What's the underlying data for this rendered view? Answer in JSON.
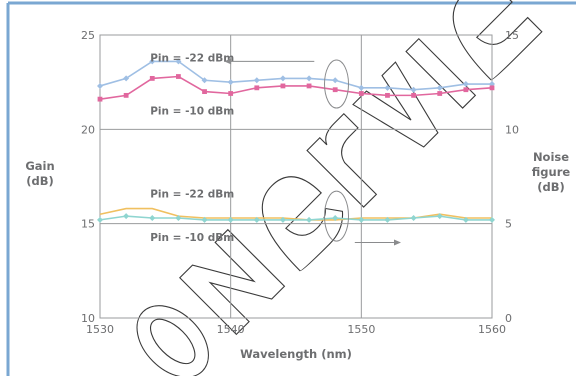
{
  "chart_data": {
    "type": "line",
    "xlabel": "Wavelength (nm)",
    "ylabel_left_lines": [
      "Gain",
      "(dB)"
    ],
    "ylabel_right_lines": [
      "Noise",
      "figure",
      "(dB)"
    ],
    "xlim": [
      1530,
      1560
    ],
    "ylim_left": [
      10,
      25
    ],
    "ylim_right": [
      0,
      15
    ],
    "x_ticks": [
      "1530",
      "1540",
      "1550",
      "1560"
    ],
    "y_ticks_left": [
      "10",
      "15",
      "20",
      "25"
    ],
    "y_ticks_right": [
      "0",
      "5",
      "10",
      "15"
    ],
    "grid": true,
    "x": [
      1530,
      1532,
      1534,
      1536,
      1538,
      1540,
      1542,
      1544,
      1546,
      1548,
      1550,
      1552,
      1554,
      1556,
      1558,
      1560
    ],
    "series": [
      {
        "name": "Pin = -22 dBm",
        "axis": "left",
        "color": "#9fbfe4",
        "marker": "diamond",
        "values": [
          22.3,
          22.7,
          23.6,
          23.6,
          22.6,
          22.5,
          22.6,
          22.7,
          22.7,
          22.6,
          22.2,
          22.2,
          22.1,
          22.2,
          22.4,
          22.4
        ]
      },
      {
        "name": "Pin = -10 dBm",
        "axis": "left",
        "color": "#e1679e",
        "marker": "square",
        "values": [
          21.6,
          21.8,
          22.7,
          22.8,
          22.0,
          21.9,
          22.2,
          22.3,
          22.3,
          22.1,
          21.9,
          21.8,
          21.8,
          21.9,
          22.1,
          22.2
        ]
      },
      {
        "name": "Pin = -22 dBm",
        "axis": "right",
        "color": "#f0c060",
        "marker": "none",
        "values": [
          5.5,
          5.8,
          5.8,
          5.4,
          5.3,
          5.3,
          5.3,
          5.3,
          5.2,
          5.2,
          5.3,
          5.3,
          5.3,
          5.5,
          5.3,
          5.3
        ]
      },
      {
        "name": "Pin = -10 dBm",
        "axis": "right",
        "color": "#8fd5d0",
        "marker": "diamond",
        "values": [
          5.2,
          5.4,
          5.3,
          5.3,
          5.2,
          5.2,
          5.2,
          5.2,
          5.2,
          5.3,
          5.2,
          5.2,
          5.3,
          5.4,
          5.2,
          5.2
        ]
      }
    ],
    "annotations": [
      {
        "text": "Pin = -22 dBm",
        "x": 1533,
        "y_left": 23.8
      },
      {
        "text": "Pin = -10 dBm",
        "x": 1533,
        "y_left": 21.0
      },
      {
        "text": "Pin = -22 dBm",
        "x": 1533,
        "y_left": 16.6
      },
      {
        "text": "Pin = -10 dBm",
        "x": 1533,
        "y_left": 14.3
      }
    ]
  }
}
